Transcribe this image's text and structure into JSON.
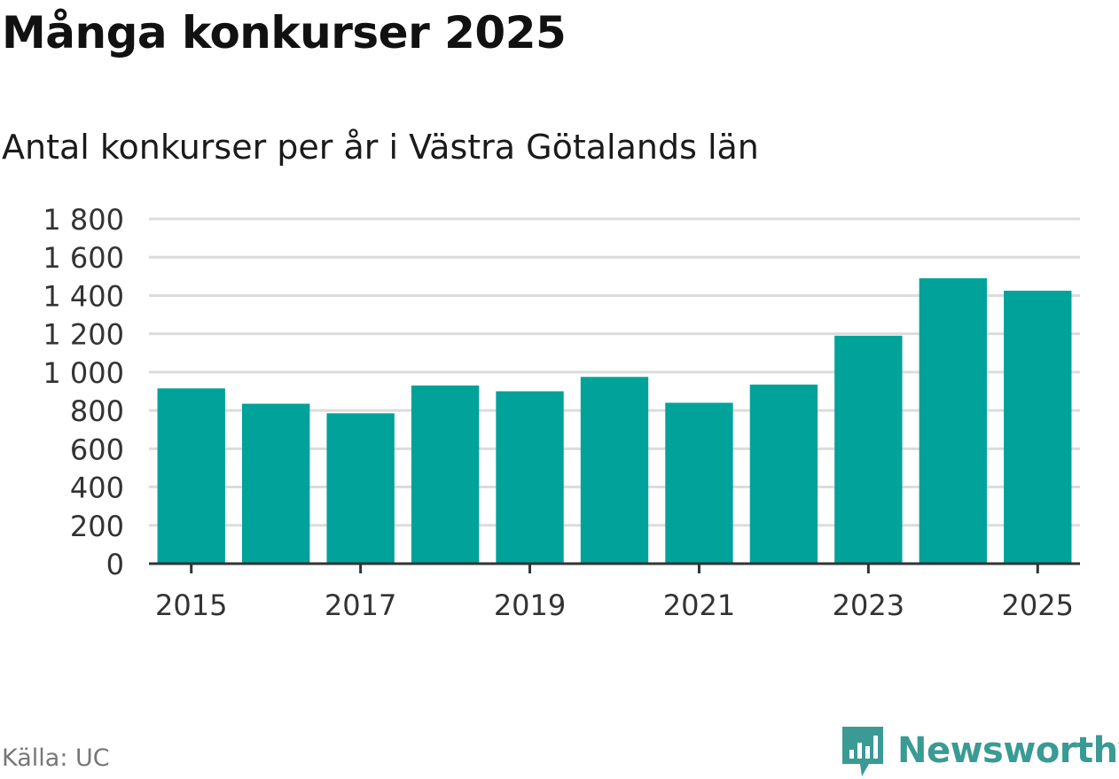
{
  "header": {
    "title": "Många konkurser 2025",
    "subtitle": "Antal konkurser per år i Västra Götalands län"
  },
  "footer": {
    "source": "Källa: UC",
    "brand": "Newsworthy",
    "brand_color": "#3a9a94"
  },
  "chart_data": {
    "type": "bar",
    "title": "Många konkurser 2025",
    "subtitle": "Antal konkurser per år i Västra Götalands län",
    "xlabel": "",
    "ylabel": "",
    "categories": [
      "2015",
      "2016",
      "2017",
      "2018",
      "2019",
      "2020",
      "2021",
      "2022",
      "2023",
      "2024",
      "2025"
    ],
    "values": [
      915,
      835,
      785,
      930,
      900,
      975,
      840,
      935,
      1190,
      1490,
      1425
    ],
    "x_tick_labels": [
      "2015",
      "2017",
      "2019",
      "2021",
      "2023",
      "2025"
    ],
    "y_ticks": [
      0,
      200,
      400,
      600,
      800,
      1000,
      1200,
      1400,
      1600,
      1800
    ],
    "y_tick_labels": [
      "0",
      "200",
      "400",
      "600",
      "800",
      "1 000",
      "1 200",
      "1 400",
      "1 600",
      "1 800"
    ],
    "ylim": [
      0,
      1800
    ],
    "grid": true,
    "bar_color": "#00a29a",
    "grid_color": "#dcdcdc",
    "axis_color": "#333333"
  }
}
